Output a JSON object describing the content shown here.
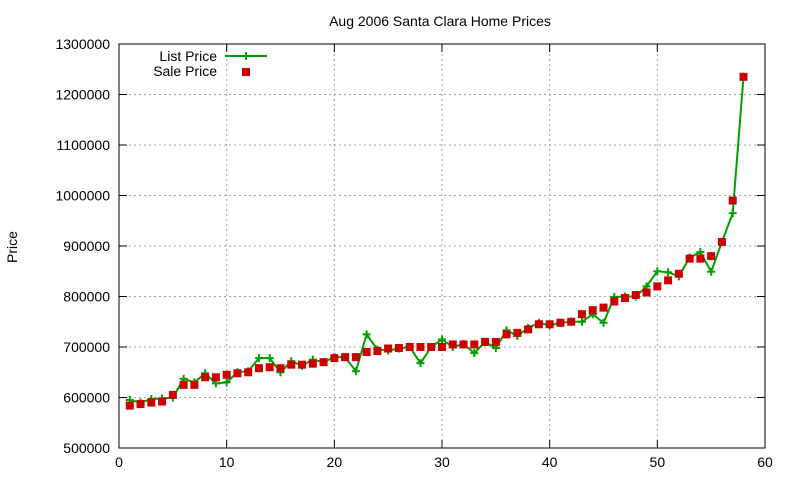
{
  "chart_data": {
    "type": "line",
    "title": "Aug 2006 Santa Clara Home Prices",
    "xlabel": "",
    "ylabel": "Price",
    "xlim": [
      0,
      60
    ],
    "ylim": [
      500000,
      1300000
    ],
    "xticks": [
      0,
      10,
      20,
      30,
      40,
      50,
      60
    ],
    "yticks": [
      500000,
      600000,
      700000,
      800000,
      900000,
      1000000,
      1100000,
      1200000,
      1300000
    ],
    "grid": true,
    "legend_position": "top-left",
    "series": [
      {
        "name": "List Price",
        "style": "line-plus",
        "color": "#00a000",
        "x": [
          1,
          2,
          3,
          4,
          5,
          6,
          7,
          8,
          9,
          10,
          11,
          12,
          13,
          14,
          15,
          16,
          17,
          18,
          19,
          20,
          21,
          22,
          23,
          24,
          25,
          26,
          27,
          28,
          29,
          30,
          31,
          32,
          33,
          34,
          35,
          36,
          37,
          38,
          39,
          40,
          41,
          42,
          43,
          44,
          45,
          46,
          47,
          48,
          49,
          50,
          51,
          52,
          53,
          54,
          55,
          56,
          57,
          58
        ],
        "y": [
          595000,
          590000,
          597000,
          598000,
          600000,
          637000,
          630000,
          648000,
          628000,
          630000,
          650000,
          652000,
          678000,
          678000,
          650000,
          672000,
          663000,
          675000,
          670000,
          680000,
          680000,
          652000,
          725000,
          695000,
          693000,
          697000,
          700000,
          668000,
          700000,
          715000,
          700000,
          706000,
          688000,
          710000,
          698000,
          733000,
          722000,
          738000,
          748000,
          743000,
          748000,
          750000,
          750000,
          765000,
          748000,
          799000,
          800000,
          800000,
          820000,
          850000,
          848000,
          840000,
          877000,
          888000,
          849000,
          908000,
          965000,
          1235000
        ]
      },
      {
        "name": "Sale Price",
        "style": "square-markers",
        "color": "#cc0000",
        "x": [
          1,
          2,
          3,
          4,
          5,
          6,
          7,
          8,
          9,
          10,
          11,
          12,
          13,
          14,
          15,
          16,
          17,
          18,
          19,
          20,
          21,
          22,
          23,
          24,
          25,
          26,
          27,
          28,
          29,
          30,
          31,
          32,
          33,
          34,
          35,
          36,
          37,
          38,
          39,
          40,
          41,
          42,
          43,
          44,
          45,
          46,
          47,
          48,
          49,
          50,
          51,
          52,
          53,
          54,
          55,
          56,
          57,
          58
        ],
        "y": [
          584000,
          587000,
          590000,
          592000,
          605000,
          625000,
          625000,
          640000,
          640000,
          645000,
          648000,
          650000,
          658000,
          660000,
          658000,
          665000,
          665000,
          667000,
          670000,
          678000,
          680000,
          680000,
          690000,
          692000,
          697000,
          698000,
          700000,
          700000,
          700000,
          700000,
          705000,
          705000,
          705000,
          710000,
          710000,
          725000,
          728000,
          735000,
          745000,
          745000,
          748000,
          750000,
          765000,
          773000,
          778000,
          790000,
          797000,
          803000,
          808000,
          820000,
          832000,
          845000,
          875000,
          875000,
          880000,
          908000,
          990000,
          1235000
        ]
      }
    ]
  }
}
